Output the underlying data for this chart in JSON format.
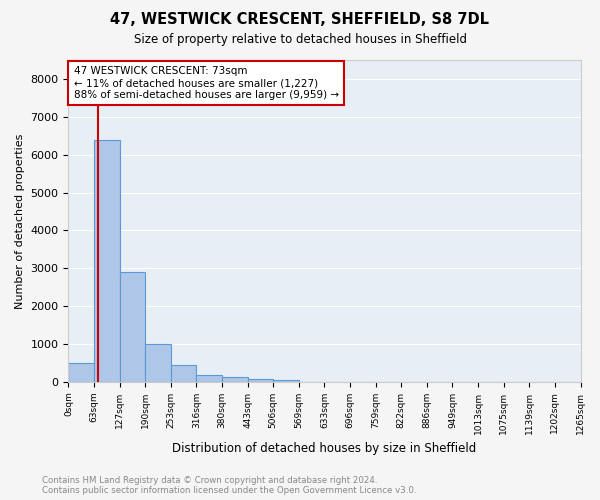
{
  "title": "47, WESTWICK CRESCENT, SHEFFIELD, S8 7DL",
  "subtitle": "Size of property relative to detached houses in Sheffield",
  "xlabel": "Distribution of detached houses by size in Sheffield",
  "ylabel": "Number of detached properties",
  "bar_color": "#aec6e8",
  "bar_edge_color": "#5b9bd5",
  "background_color": "#e8eef5",
  "grid_color": "#ffffff",
  "annotation_text": "47 WESTWICK CRESCENT: 73sqm\n← 11% of detached houses are smaller (1,227)\n88% of semi-detached houses are larger (9,959) →",
  "annotation_box_color": "#ffffff",
  "annotation_box_edge_color": "#cc0000",
  "red_line_color": "#cc0000",
  "bin_edges": [
    "0sqm",
    "63sqm",
    "127sqm",
    "190sqm",
    "253sqm",
    "316sqm",
    "380sqm",
    "443sqm",
    "506sqm",
    "569sqm",
    "633sqm",
    "696sqm",
    "759sqm",
    "822sqm",
    "886sqm",
    "949sqm",
    "1013sqm",
    "1075sqm",
    "1139sqm",
    "1202sqm",
    "1265sqm"
  ],
  "bin_values": [
    500,
    6400,
    2900,
    1000,
    450,
    175,
    125,
    75,
    50,
    0,
    0,
    0,
    0,
    0,
    0,
    0,
    0,
    0,
    0,
    0
  ],
  "property_sqm": 73,
  "bin_start_sqm": [
    0,
    63,
    127,
    190,
    253,
    316,
    380,
    443,
    506,
    569,
    633,
    696,
    759,
    822,
    886,
    949,
    1013,
    1075,
    1139,
    1202
  ],
  "bin_end_sqm": [
    63,
    127,
    190,
    253,
    316,
    380,
    443,
    506,
    569,
    633,
    696,
    759,
    822,
    886,
    949,
    1013,
    1075,
    1139,
    1202,
    1265
  ],
  "ylim": [
    0,
    8500
  ],
  "yticks": [
    0,
    1000,
    2000,
    3000,
    4000,
    5000,
    6000,
    7000,
    8000
  ],
  "footer_text": "Contains HM Land Registry data © Crown copyright and database right 2024.\nContains public sector information licensed under the Open Government Licence v3.0.",
  "footer_color": "#888888"
}
